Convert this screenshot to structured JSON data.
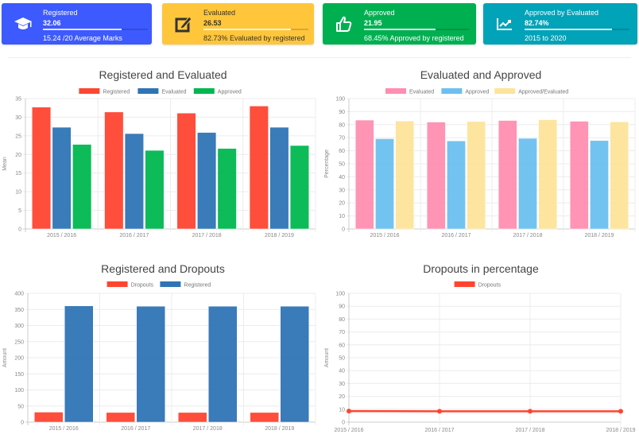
{
  "cards": [
    {
      "label": "Registered",
      "value": "32.06",
      "progress": 0.75,
      "desc": "15.24 /20 Average Marks",
      "color": "#3d5afe",
      "icon": "graduation-cap-icon",
      "text_color": "#ffffff"
    },
    {
      "label": "Evaluated",
      "value": "26.53",
      "progress": 0.83,
      "desc": "82.73% Evaluated by registered",
      "color": "#ffc63c",
      "icon": "edit-icon",
      "text_color": "#333333"
    },
    {
      "label": "Approved",
      "value": "21.95",
      "progress": 0.68,
      "desc": "68.45% Approved by registered",
      "color": "#00b050",
      "icon": "thumbs-up-icon",
      "text_color": "#ffffff"
    },
    {
      "label": "Approved by Evaluated",
      "value": "82.74%",
      "progress": 0.83,
      "desc": "2015 to 2020",
      "color": "#00a3b8",
      "icon": "chart-line-icon",
      "text_color": "#ffffff"
    }
  ],
  "chart_data": [
    {
      "type": "bar",
      "title": "Registered and Evaluated",
      "xlabel": "",
      "ylabel": "Mean",
      "ylim": [
        0,
        35
      ],
      "yticks": [
        0,
        5,
        10,
        15,
        20,
        25,
        30,
        35
      ],
      "categories": [
        "2015 / 2016",
        "2016 / 2017",
        "2017 / 2018",
        "2018 / 2019"
      ],
      "grid": true,
      "legend": "top",
      "series": [
        {
          "name": "Registered",
          "color": "#ff4530",
          "values": [
            32.7,
            31.4,
            31.1,
            33.0
          ]
        },
        {
          "name": "Evaluated",
          "color": "#2f74b5",
          "values": [
            27.3,
            25.6,
            25.9,
            27.3
          ]
        },
        {
          "name": "Approved",
          "color": "#00b74f",
          "values": [
            22.7,
            21.1,
            21.6,
            22.4
          ]
        }
      ]
    },
    {
      "type": "bar",
      "title": "Evaluated and Approved",
      "xlabel": "",
      "ylabel": "Percentage",
      "ylim": [
        0,
        100
      ],
      "yticks": [
        0,
        10,
        20,
        30,
        40,
        50,
        60,
        70,
        80,
        90,
        100
      ],
      "categories": [
        "2015 / 2016",
        "2016 / 2017",
        "2017 / 2018",
        "2018 / 2019"
      ],
      "grid": true,
      "legend": "top",
      "series": [
        {
          "name": "Evaluated",
          "color": "#ff8eb0",
          "values": [
            83.5,
            82.0,
            83.2,
            82.6
          ]
        },
        {
          "name": "Approved",
          "color": "#6cc0f0",
          "values": [
            69.2,
            67.5,
            69.5,
            67.8
          ]
        },
        {
          "name": "Approved/Evaluated",
          "color": "#fde49a",
          "values": [
            82.8,
            82.4,
            83.8,
            82.2
          ]
        }
      ]
    },
    {
      "type": "bar",
      "title": "Registered and Dropouts",
      "xlabel": "",
      "ylabel": "Amount",
      "ylim": [
        0,
        400
      ],
      "yticks": [
        0,
        50,
        100,
        150,
        200,
        250,
        300,
        350,
        400
      ],
      "categories": [
        "2015 / 2016",
        "2016 / 2017",
        "2017 / 2018",
        "2018 / 2019"
      ],
      "grid": true,
      "legend": "top",
      "series": [
        {
          "name": "Dropouts",
          "color": "#ff4530",
          "values": [
            31,
            30,
            30,
            30
          ]
        },
        {
          "name": "Registered",
          "color": "#2f74b5",
          "values": [
            361,
            360,
            360,
            360
          ]
        }
      ]
    },
    {
      "type": "line",
      "title": "Dropouts in percentage",
      "xlabel": "",
      "ylabel": "Amount",
      "ylim": [
        0,
        100
      ],
      "yticks": [
        0,
        10,
        20,
        30,
        40,
        50,
        60,
        70,
        80,
        90,
        100
      ],
      "categories": [
        "2015 / 2016",
        "2016 / 2017",
        "2017 / 2018",
        "2018 / 2019"
      ],
      "grid": true,
      "legend": "top",
      "series": [
        {
          "name": "Dropouts",
          "color": "#ff4530",
          "values": [
            8.6,
            8.4,
            8.4,
            8.4
          ]
        }
      ]
    }
  ]
}
